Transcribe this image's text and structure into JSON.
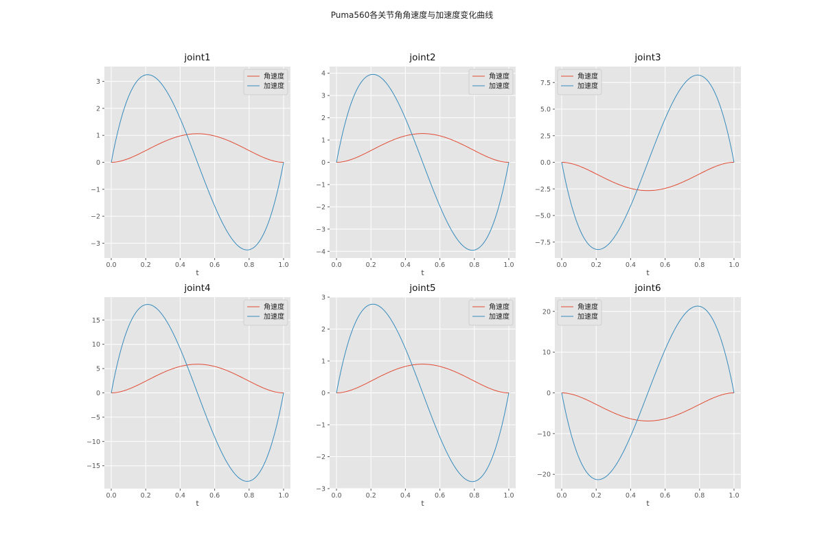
{
  "figure": {
    "title": "Puma560各关节角角速度与加速度变化曲线"
  },
  "colors": {
    "velocity": "#E24A33",
    "acceleration": "#348ABD",
    "panel_bg": "#E5E5E5",
    "grid": "#FFFFFF"
  },
  "chart_data": [
    {
      "type": "line",
      "title": "joint1",
      "xlabel": "t",
      "ylabel": "",
      "xlim": [
        -0.04,
        1.04
      ],
      "ylim": [
        -3.55,
        3.55
      ],
      "xticks": [
        0.0,
        0.2,
        0.4,
        0.6,
        0.8,
        1.0
      ],
      "xtick_labels": [
        "0.0",
        "0.2",
        "0.4",
        "0.6",
        "0.8",
        "1.0"
      ],
      "yticks": [
        -3,
        -2,
        -1,
        0,
        1,
        2,
        3
      ],
      "ytick_labels": [
        "−3",
        "−2",
        "−1",
        "0",
        "1",
        "2",
        "3"
      ],
      "grid": true,
      "legend": "upper right",
      "series": [
        {
          "name": "角速度",
          "peak": 1.06
        },
        {
          "name": "加速度",
          "peak": 3.25
        }
      ]
    },
    {
      "type": "line",
      "title": "joint2",
      "xlabel": "t",
      "ylabel": "",
      "xlim": [
        -0.04,
        1.04
      ],
      "ylim": [
        -4.3,
        4.3
      ],
      "xticks": [
        0.0,
        0.2,
        0.4,
        0.6,
        0.8,
        1.0
      ],
      "xtick_labels": [
        "0.0",
        "0.2",
        "0.4",
        "0.6",
        "0.8",
        "1.0"
      ],
      "yticks": [
        -4,
        -3,
        -2,
        -1,
        0,
        1,
        2,
        3,
        4
      ],
      "ytick_labels": [
        "−4",
        "−3",
        "−2",
        "−1",
        "0",
        "1",
        "2",
        "3",
        "4"
      ],
      "grid": true,
      "legend": "upper right",
      "series": [
        {
          "name": "角速度",
          "peak": 1.29
        },
        {
          "name": "加速度",
          "peak": 3.95
        }
      ]
    },
    {
      "type": "line",
      "title": "joint3",
      "xlabel": "t",
      "ylabel": "",
      "xlim": [
        -0.04,
        1.04
      ],
      "ylim": [
        -9.0,
        9.0
      ],
      "xticks": [
        0.0,
        0.2,
        0.4,
        0.6,
        0.8,
        1.0
      ],
      "xtick_labels": [
        "0.0",
        "0.2",
        "0.4",
        "0.6",
        "0.8",
        "1.0"
      ],
      "yticks": [
        -7.5,
        -5.0,
        -2.5,
        0.0,
        2.5,
        5.0,
        7.5
      ],
      "ytick_labels": [
        "−7.5",
        "−5.0",
        "−2.5",
        "0.0",
        "2.5",
        "5.0",
        "7.5"
      ],
      "grid": true,
      "legend": "upper left",
      "series": [
        {
          "name": "角速度",
          "peak": -2.66
        },
        {
          "name": "加速度",
          "peak": -8.2
        }
      ]
    },
    {
      "type": "line",
      "title": "joint4",
      "xlabel": "t",
      "ylabel": "",
      "xlim": [
        -0.04,
        1.04
      ],
      "ylim": [
        -19.7,
        19.7
      ],
      "xticks": [
        0.0,
        0.2,
        0.4,
        0.6,
        0.8,
        1.0
      ],
      "xtick_labels": [
        "0.0",
        "0.2",
        "0.4",
        "0.6",
        "0.8",
        "1.0"
      ],
      "yticks": [
        -15,
        -10,
        -5,
        0,
        5,
        10,
        15
      ],
      "ytick_labels": [
        "−15",
        "−10",
        "−5",
        "0",
        "5",
        "10",
        "15"
      ],
      "grid": true,
      "legend": "upper right",
      "series": [
        {
          "name": "角速度",
          "peak": 5.9
        },
        {
          "name": "加速度",
          "peak": 18.2
        }
      ]
    },
    {
      "type": "line",
      "title": "joint5",
      "xlabel": "t",
      "ylabel": "",
      "xlim": [
        -0.04,
        1.04
      ],
      "ylim": [
        -3.0,
        3.0
      ],
      "xticks": [
        0.0,
        0.2,
        0.4,
        0.6,
        0.8,
        1.0
      ],
      "xtick_labels": [
        "0.0",
        "0.2",
        "0.4",
        "0.6",
        "0.8",
        "1.0"
      ],
      "yticks": [
        -3,
        -2,
        -1,
        0,
        1,
        2,
        3
      ],
      "ytick_labels": [
        "−3",
        "−2",
        "−1",
        "0",
        "1",
        "2",
        "3"
      ],
      "grid": true,
      "legend": "upper right",
      "series": [
        {
          "name": "角速度",
          "peak": 0.9
        },
        {
          "name": "加速度",
          "peak": 2.78
        }
      ]
    },
    {
      "type": "line",
      "title": "joint6",
      "xlabel": "t",
      "ylabel": "",
      "xlim": [
        -0.04,
        1.04
      ],
      "ylim": [
        -23.5,
        23.5
      ],
      "xticks": [
        0.0,
        0.2,
        0.4,
        0.6,
        0.8,
        1.0
      ],
      "xtick_labels": [
        "0.0",
        "0.2",
        "0.4",
        "0.6",
        "0.8",
        "1.0"
      ],
      "yticks": [
        -20,
        -10,
        0,
        10,
        20
      ],
      "ytick_labels": [
        "−20",
        "−10",
        "0",
        "10",
        "20"
      ],
      "grid": true,
      "legend": "upper left",
      "series": [
        {
          "name": "角速度",
          "peak": -6.9
        },
        {
          "name": "加速度",
          "peak": -21.3
        }
      ]
    }
  ]
}
